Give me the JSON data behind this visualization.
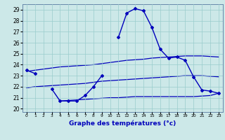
{
  "title": "Graphe des températures (°c)",
  "bg_color": "#cce8e8",
  "grid_color": "#99cccc",
  "line_color": "#0000bb",
  "axis_label_color": "#0000bb",
  "border_color": "#6688aa",
  "yticks": [
    20,
    21,
    22,
    23,
    24,
    25,
    26,
    27,
    28,
    29
  ],
  "ylim_min": 19.7,
  "ylim_max": 29.5,
  "hours": [
    0,
    1,
    2,
    3,
    4,
    5,
    6,
    7,
    8,
    9,
    10,
    11,
    12,
    13,
    14,
    15,
    16,
    17,
    18,
    19,
    20,
    21,
    22,
    23
  ],
  "main_curve": [
    23.5,
    23.2,
    null,
    21.8,
    20.7,
    20.7,
    20.7,
    21.2,
    22.0,
    23.0,
    null,
    26.5,
    28.7,
    29.1,
    28.9,
    27.4,
    25.4,
    24.6,
    24.7,
    24.4,
    22.9,
    21.7,
    21.6,
    21.4
  ],
  "upper_line": [
    23.4,
    23.5,
    23.6,
    23.7,
    23.8,
    23.85,
    23.9,
    23.95,
    24.0,
    24.1,
    24.2,
    24.3,
    24.4,
    24.45,
    24.5,
    24.6,
    24.65,
    24.7,
    24.75,
    24.8,
    24.8,
    24.8,
    24.75,
    24.7
  ],
  "mid_line": [
    21.9,
    22.0,
    22.05,
    22.1,
    22.15,
    22.2,
    22.25,
    22.3,
    22.4,
    22.5,
    22.55,
    22.6,
    22.65,
    22.7,
    22.75,
    22.8,
    22.85,
    22.9,
    22.95,
    23.0,
    23.0,
    23.0,
    22.95,
    22.9
  ],
  "low_line": [
    null,
    null,
    null,
    null,
    20.7,
    20.75,
    20.8,
    20.85,
    20.9,
    20.95,
    21.0,
    21.0,
    21.05,
    21.1,
    21.1,
    21.1,
    21.1,
    21.1,
    21.1,
    21.1,
    21.1,
    21.15,
    21.2,
    21.4
  ]
}
